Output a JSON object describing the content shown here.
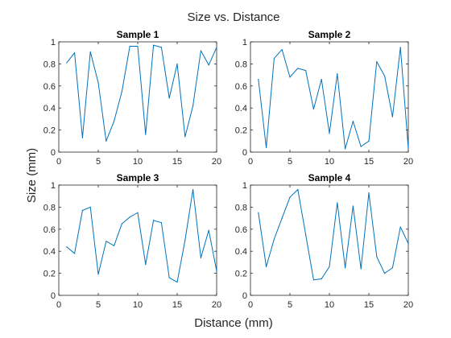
{
  "figure": {
    "title": "Size vs. Distance",
    "xlabel": "Distance (mm)",
    "ylabel": "Size (mm)",
    "line_color": "#0072BD"
  },
  "chart_data": [
    {
      "type": "line",
      "title": "Sample 1",
      "xlim": [
        0,
        20
      ],
      "ylim": [
        0,
        1
      ],
      "xticks": [
        "0",
        "5",
        "10",
        "15",
        "20"
      ],
      "yticks": [
        "0",
        "0.2",
        "0.4",
        "0.6",
        "0.8",
        "1"
      ],
      "x": [
        1,
        2,
        3,
        4,
        5,
        6,
        7,
        8,
        9,
        10,
        11,
        12,
        13,
        14,
        15,
        16,
        17,
        18,
        19,
        20
      ],
      "values": [
        0.81,
        0.9,
        0.13,
        0.91,
        0.63,
        0.1,
        0.28,
        0.55,
        0.96,
        0.96,
        0.16,
        0.97,
        0.95,
        0.49,
        0.8,
        0.14,
        0.42,
        0.92,
        0.79,
        0.95
      ]
    },
    {
      "type": "line",
      "title": "Sample 2",
      "xlim": [
        0,
        20
      ],
      "ylim": [
        0,
        1
      ],
      "xticks": [
        "0",
        "5",
        "10",
        "15",
        "20"
      ],
      "yticks": [
        "0",
        "0.2",
        "0.4",
        "0.6",
        "0.8",
        "1"
      ],
      "x": [
        1,
        2,
        3,
        4,
        5,
        6,
        7,
        8,
        9,
        10,
        11,
        12,
        13,
        14,
        15,
        16,
        17,
        18,
        19,
        20
      ],
      "values": [
        0.66,
        0.04,
        0.85,
        0.93,
        0.68,
        0.76,
        0.74,
        0.39,
        0.66,
        0.17,
        0.71,
        0.03,
        0.28,
        0.05,
        0.1,
        0.82,
        0.69,
        0.32,
        0.95,
        0.03
      ]
    },
    {
      "type": "line",
      "title": "Sample 3",
      "xlim": [
        0,
        20
      ],
      "ylim": [
        0,
        1
      ],
      "xticks": [
        "0",
        "5",
        "10",
        "15",
        "20"
      ],
      "yticks": [
        "0",
        "0.2",
        "0.4",
        "0.6",
        "0.8",
        "1"
      ],
      "x": [
        1,
        2,
        3,
        4,
        5,
        6,
        7,
        8,
        9,
        10,
        11,
        12,
        13,
        14,
        15,
        16,
        17,
        18,
        19,
        20
      ],
      "values": [
        0.44,
        0.38,
        0.77,
        0.8,
        0.19,
        0.49,
        0.45,
        0.65,
        0.71,
        0.75,
        0.28,
        0.68,
        0.66,
        0.16,
        0.12,
        0.5,
        0.96,
        0.34,
        0.59,
        0.22
      ]
    },
    {
      "type": "line",
      "title": "Sample 4",
      "xlim": [
        0,
        20
      ],
      "ylim": [
        0,
        1
      ],
      "xticks": [
        "0",
        "5",
        "10",
        "15",
        "20"
      ],
      "yticks": [
        "0",
        "0.2",
        "0.4",
        "0.6",
        "0.8",
        "1"
      ],
      "x": [
        1,
        2,
        3,
        4,
        5,
        6,
        7,
        8,
        9,
        10,
        11,
        12,
        13,
        14,
        15,
        16,
        17,
        18,
        19,
        20
      ],
      "values": [
        0.75,
        0.26,
        0.51,
        0.7,
        0.89,
        0.96,
        0.55,
        0.14,
        0.15,
        0.26,
        0.84,
        0.25,
        0.81,
        0.24,
        0.93,
        0.35,
        0.2,
        0.25,
        0.62,
        0.47
      ]
    }
  ]
}
